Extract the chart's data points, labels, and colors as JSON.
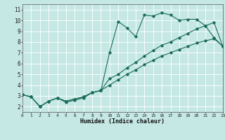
{
  "xlabel": "Humidex (Indice chaleur)",
  "xlim": [
    0,
    23
  ],
  "ylim": [
    1.5,
    11.5
  ],
  "xticks": [
    0,
    1,
    2,
    3,
    4,
    5,
    6,
    7,
    8,
    9,
    10,
    11,
    12,
    13,
    14,
    15,
    16,
    17,
    18,
    19,
    20,
    21,
    22,
    23
  ],
  "yticks": [
    2,
    3,
    4,
    5,
    6,
    7,
    8,
    9,
    10,
    11
  ],
  "bg_color": "#c5e8e5",
  "line_color": "#1a6b5a",
  "grid_color": "#ffffff",
  "line1": [
    3.1,
    2.9,
    2.0,
    2.5,
    2.8,
    2.4,
    2.6,
    2.8,
    3.3,
    3.5,
    7.0,
    9.9,
    9.3,
    8.5,
    10.5,
    10.4,
    10.7,
    10.5,
    10.0,
    10.1,
    10.1,
    9.5,
    8.4,
    7.6
  ],
  "line2": [
    3.1,
    2.9,
    2.0,
    2.5,
    2.8,
    2.5,
    2.7,
    2.9,
    3.3,
    3.5,
    4.6,
    5.0,
    5.6,
    6.1,
    6.7,
    7.2,
    7.7,
    8.0,
    8.4,
    8.8,
    9.2,
    9.5,
    9.8,
    7.6
  ],
  "line3": [
    3.1,
    2.9,
    2.0,
    2.5,
    2.8,
    2.5,
    2.7,
    2.9,
    3.3,
    3.5,
    4.0,
    4.5,
    5.0,
    5.4,
    5.9,
    6.3,
    6.7,
    7.0,
    7.3,
    7.6,
    7.9,
    8.1,
    8.3,
    7.6
  ]
}
